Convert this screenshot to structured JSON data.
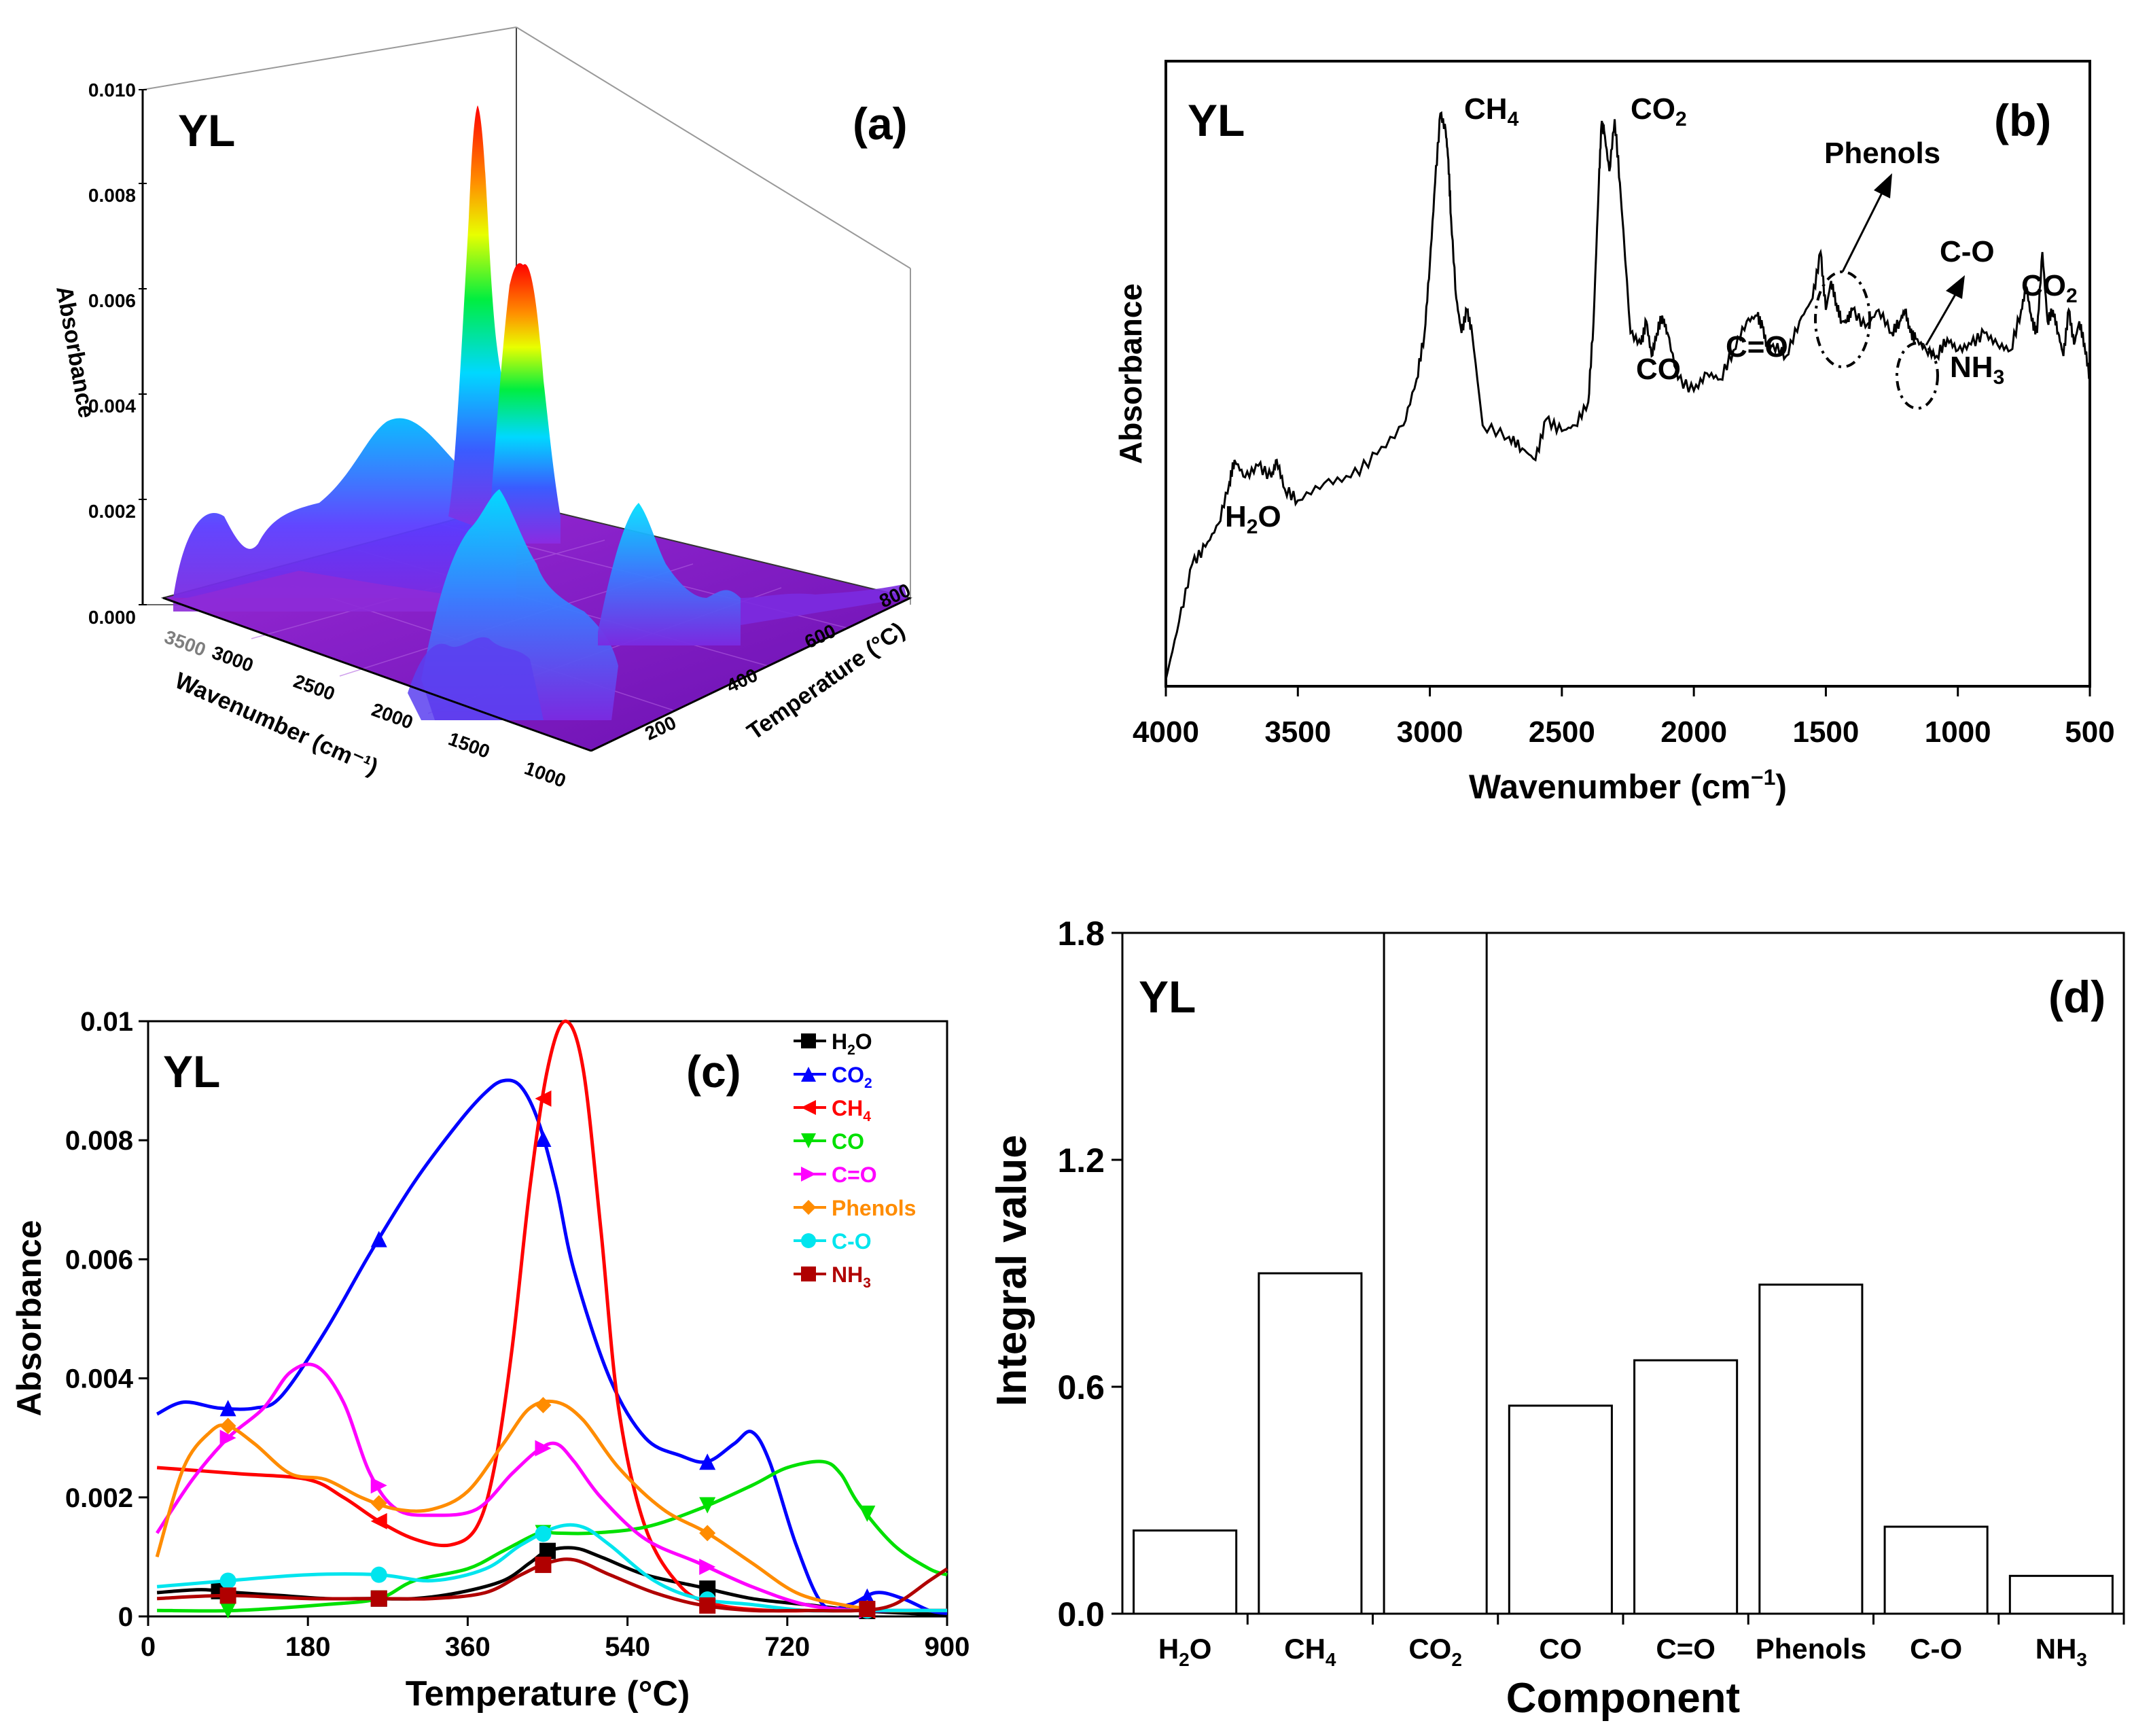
{
  "panel_a": {
    "label": "(a)",
    "sample": "YL",
    "zlabel": "Absorbance",
    "xlabel": "Wavenumber (cm⁻¹)",
    "ylabel": "Temperature (°C)",
    "z_ticks": [
      "0.000",
      "0.002",
      "0.004",
      "0.006",
      "0.008",
      "0.010"
    ],
    "wavenumber_ticks": [
      "3000",
      "2500",
      "2000",
      "1500",
      "1000"
    ],
    "wavenumber_partial_tick": "3500",
    "temperature_ticks": [
      "200",
      "400",
      "600",
      "800"
    ]
  },
  "chart_data": [
    {
      "id": "b",
      "type": "line",
      "label": "(b)",
      "sample": "YL",
      "xlabel_main": "Wavenumber (cm",
      "xlabel_sup": "−1",
      "xlabel_end": ")",
      "ylabel": "Absorbance",
      "xlim": [
        4000,
        500
      ],
      "x_ticks": [
        "4000",
        "3500",
        "3000",
        "2500",
        "2000",
        "1500",
        "1000",
        "500"
      ],
      "x": [
        4000,
        3950,
        3900,
        3850,
        3800,
        3760,
        3740,
        3700,
        3650,
        3600,
        3580,
        3550,
        3500,
        3400,
        3300,
        3200,
        3100,
        3050,
        3020,
        3000,
        2980,
        2960,
        2940,
        2930,
        2920,
        2900,
        2880,
        2860,
        2840,
        2800,
        2700,
        2650,
        2600,
        2560,
        2500,
        2450,
        2400,
        2380,
        2360,
        2350,
        2340,
        2320,
        2300,
        2280,
        2240,
        2200,
        2180,
        2160,
        2140,
        2120,
        2100,
        2060,
        2000,
        1950,
        1900,
        1850,
        1800,
        1760,
        1740,
        1720,
        1700,
        1650,
        1600,
        1550,
        1520,
        1500,
        1480,
        1460,
        1440,
        1420,
        1400,
        1350,
        1300,
        1250,
        1220,
        1200,
        1180,
        1160,
        1120,
        1080,
        1040,
        1000,
        950,
        900,
        850,
        800,
        760,
        740,
        720,
        700,
        680,
        660,
        640,
        620,
        600,
        580,
        560,
        540,
        520,
        500
      ],
      "y": [
        0.0,
        0.1,
        0.2,
        0.23,
        0.27,
        0.34,
        0.38,
        0.35,
        0.37,
        0.35,
        0.38,
        0.33,
        0.31,
        0.34,
        0.35,
        0.39,
        0.44,
        0.52,
        0.6,
        0.72,
        0.86,
        0.98,
        0.95,
        0.9,
        0.8,
        0.66,
        0.6,
        0.64,
        0.6,
        0.44,
        0.42,
        0.4,
        0.38,
        0.45,
        0.43,
        0.44,
        0.48,
        0.62,
        0.86,
        0.96,
        0.95,
        0.88,
        0.97,
        0.86,
        0.6,
        0.58,
        0.62,
        0.56,
        0.6,
        0.63,
        0.6,
        0.52,
        0.5,
        0.53,
        0.52,
        0.57,
        0.62,
        0.63,
        0.61,
        0.57,
        0.58,
        0.56,
        0.62,
        0.66,
        0.74,
        0.64,
        0.69,
        0.65,
        0.62,
        0.62,
        0.64,
        0.61,
        0.64,
        0.6,
        0.62,
        0.64,
        0.6,
        0.59,
        0.57,
        0.56,
        0.59,
        0.57,
        0.58,
        0.6,
        0.58,
        0.57,
        0.64,
        0.68,
        0.62,
        0.6,
        0.74,
        0.62,
        0.64,
        0.6,
        0.56,
        0.64,
        0.58,
        0.62,
        0.58,
        0.52
      ],
      "annotations": [
        {
          "main": "H",
          "sub": "2",
          "end": "O",
          "x": 3650
        },
        {
          "main": "CH",
          "sub": "4",
          "end": "",
          "x": 2780
        },
        {
          "main": "CO",
          "sub": "2",
          "end": "",
          "x": 2190
        },
        {
          "main": "CO",
          "sub": "",
          "end": "",
          "x": 2150
        },
        {
          "main": "C=O",
          "sub": "",
          "end": "",
          "x": 1850
        },
        {
          "main": "Phenols",
          "sub": "",
          "end": "",
          "x": 1280
        },
        {
          "main": "C-O",
          "sub": "",
          "end": "",
          "x": 1050
        },
        {
          "main": "NH",
          "sub": "3",
          "end": "",
          "x": 1030
        },
        {
          "main": "CO",
          "sub": "2",
          "end": "",
          "x": 620
        }
      ]
    },
    {
      "id": "c",
      "type": "line",
      "label": "(c)",
      "sample": "YL",
      "xlabel": "Temperature (°C)",
      "ylabel": "Absorbance",
      "xlim": [
        0,
        900
      ],
      "ylim": [
        0,
        0.01
      ],
      "x_ticks": [
        "0",
        "180",
        "360",
        "540",
        "720",
        "900"
      ],
      "y_ticks": [
        "0",
        "0.002",
        "0.004",
        "0.006",
        "0.008",
        "0.01"
      ],
      "series": [
        {
          "name": "H₂O",
          "color": "#000000",
          "marker": "square",
          "x": [
            10,
            60,
            100,
            150,
            200,
            250,
            300,
            350,
            400,
            430,
            450,
            480,
            510,
            560,
            620,
            680,
            740,
            800,
            860,
            900
          ],
          "y": [
            0.0004,
            0.00045,
            0.0004,
            0.00035,
            0.0003,
            0.0003,
            0.0003,
            0.0004,
            0.0006,
            0.0009,
            0.0011,
            0.00115,
            0.001,
            0.0007,
            0.0005,
            0.0003,
            0.0002,
            0.0001,
            5e-05,
            3e-05
          ],
          "markers_x": [
            80,
            260,
            450,
            630,
            810
          ]
        },
        {
          "name": "CO₂",
          "color": "#0000ff",
          "marker": "triangle-up",
          "x": [
            10,
            40,
            80,
            120,
            150,
            200,
            250,
            300,
            350,
            380,
            400,
            420,
            440,
            460,
            480,
            520,
            560,
            600,
            630,
            660,
            680,
            700,
            730,
            760,
            790,
            820,
            850,
            880,
            900
          ],
          "y": [
            0.0034,
            0.0036,
            0.0035,
            0.0035,
            0.0037,
            0.0048,
            0.0061,
            0.0073,
            0.0083,
            0.0088,
            0.009,
            0.0089,
            0.0083,
            0.0072,
            0.0058,
            0.004,
            0.003,
            0.0027,
            0.0026,
            0.0029,
            0.0031,
            0.0026,
            0.0012,
            0.0002,
            0.0002,
            0.0004,
            0.0003,
            0.0001,
            5e-05
          ],
          "markers_x": [
            90,
            260,
            445,
            630,
            810
          ]
        },
        {
          "name": "CH₄",
          "color": "#ff0000",
          "marker": "triangle-left",
          "x": [
            10,
            100,
            180,
            220,
            260,
            300,
            340,
            370,
            390,
            410,
            430,
            450,
            470,
            490,
            510,
            530,
            560,
            600,
            640,
            700,
            760,
            820,
            880,
            900
          ],
          "y": [
            0.0025,
            0.0024,
            0.0023,
            0.002,
            0.0016,
            0.0013,
            0.0012,
            0.0015,
            0.0025,
            0.0045,
            0.0072,
            0.0092,
            0.01,
            0.0092,
            0.0065,
            0.0035,
            0.0015,
            0.0005,
            0.0002,
            0.0001,
            0.0001,
            0.0001,
            0.0001,
            0.0001
          ],
          "markers_x": [
            260,
            445,
            810
          ]
        },
        {
          "name": "CO",
          "color": "#00e000",
          "marker": "triangle-down",
          "x": [
            10,
            100,
            200,
            260,
            300,
            360,
            400,
            440,
            460,
            500,
            560,
            620,
            680,
            720,
            760,
            780,
            800,
            840,
            880,
            900
          ],
          "y": [
            0.0001,
            0.0001,
            0.0002,
            0.0003,
            0.0006,
            0.0008,
            0.0011,
            0.0014,
            0.0014,
            0.0014,
            0.0015,
            0.0018,
            0.0022,
            0.0025,
            0.0026,
            0.0024,
            0.0019,
            0.0012,
            0.0008,
            0.0007
          ],
          "markers_x": [
            90,
            260,
            445,
            630,
            810
          ]
        },
        {
          "name": "C=O",
          "color": "#ff00ff",
          "marker": "triangle-right",
          "x": [
            10,
            50,
            90,
            130,
            160,
            190,
            220,
            250,
            280,
            320,
            370,
            410,
            440,
            460,
            480,
            510,
            560,
            620,
            680,
            740,
            800,
            860,
            900
          ],
          "y": [
            0.0014,
            0.0023,
            0.003,
            0.0035,
            0.0041,
            0.0042,
            0.0036,
            0.0024,
            0.0018,
            0.0017,
            0.0018,
            0.0024,
            0.0028,
            0.0029,
            0.0026,
            0.002,
            0.0013,
            0.0009,
            0.0005,
            0.0002,
            0.0001,
            0.0001,
            0.0001
          ],
          "markers_x": [
            90,
            260,
            445,
            630,
            810
          ]
        },
        {
          "name": "Phenols",
          "color": "#ff8c00",
          "marker": "diamond",
          "x": [
            10,
            40,
            70,
            90,
            120,
            160,
            200,
            240,
            280,
            320,
            360,
            400,
            430,
            460,
            490,
            530,
            580,
            630,
            680,
            730,
            780,
            830,
            880,
            900
          ],
          "y": [
            0.001,
            0.0025,
            0.0031,
            0.0032,
            0.0029,
            0.0024,
            0.0023,
            0.002,
            0.0018,
            0.0018,
            0.0021,
            0.0029,
            0.0035,
            0.0036,
            0.0033,
            0.0025,
            0.0018,
            0.0014,
            0.0009,
            0.0004,
            0.0002,
            0.0001,
            0.0001,
            0.0001
          ],
          "markers_x": [
            90,
            260,
            445,
            630,
            810
          ]
        },
        {
          "name": "C-O",
          "color": "#00e5ee",
          "marker": "circle",
          "x": [
            10,
            90,
            180,
            260,
            320,
            380,
            420,
            460,
            490,
            520,
            570,
            620,
            680,
            740,
            800,
            860,
            900
          ],
          "y": [
            0.0005,
            0.0006,
            0.0007,
            0.0007,
            0.0006,
            0.0008,
            0.0012,
            0.0015,
            0.0015,
            0.0012,
            0.0006,
            0.0003,
            0.0002,
            0.0001,
            0.0001,
            0.0001,
            0.0001
          ],
          "markers_x": [
            90,
            260,
            445,
            630,
            810
          ]
        },
        {
          "name": "NH₃",
          "color": "#b00000",
          "marker": "square",
          "x": [
            10,
            90,
            180,
            260,
            320,
            380,
            420,
            450,
            480,
            520,
            570,
            620,
            680,
            740,
            800,
            840,
            880,
            900
          ],
          "y": [
            0.0003,
            0.00035,
            0.0003,
            0.0003,
            0.0003,
            0.0004,
            0.0007,
            0.0009,
            0.00095,
            0.0007,
            0.0004,
            0.0002,
            0.0001,
            0.0001,
            0.0001,
            0.0002,
            0.0006,
            0.0008
          ],
          "markers_x": [
            90,
            260,
            445,
            630,
            810
          ]
        }
      ]
    },
    {
      "id": "d",
      "type": "bar",
      "label": "(d)",
      "sample": "YL",
      "xlabel": "Component",
      "ylabel": "Integral value",
      "ylim": [
        0,
        1.8
      ],
      "y_ticks": [
        "0.0",
        "0.6",
        "1.2",
        "1.8"
      ],
      "categories": [
        "H₂O",
        "CH₄",
        "CO₂",
        "CO",
        "C=O",
        "Phenols",
        "C-O",
        "NH₃"
      ],
      "values": [
        0.22,
        0.9,
        1.8,
        0.55,
        0.67,
        0.87,
        0.23,
        0.1
      ]
    }
  ],
  "legend_c": {
    "items": [
      {
        "main": "H",
        "sub": "2",
        "end": "O",
        "color": "#000000"
      },
      {
        "main": "CO",
        "sub": "2",
        "end": "",
        "color": "#0000ff"
      },
      {
        "main": "CH",
        "sub": "4",
        "end": "",
        "color": "#ff0000"
      },
      {
        "main": "CO",
        "sub": "",
        "end": "",
        "color": "#00e000"
      },
      {
        "main": "C=O",
        "sub": "",
        "end": "",
        "color": "#ff00ff"
      },
      {
        "main": "Phenols",
        "sub": "",
        "end": "",
        "color": "#ff8c00"
      },
      {
        "main": "C-O",
        "sub": "",
        "end": "",
        "color": "#00e5ee"
      },
      {
        "main": "NH",
        "sub": "3",
        "end": "",
        "color": "#b00000"
      }
    ]
  },
  "bar_labels_d": [
    {
      "main": "H",
      "sub": "2",
      "end": "O"
    },
    {
      "main": "CH",
      "sub": "4",
      "end": ""
    },
    {
      "main": "CO",
      "sub": "2",
      "end": ""
    },
    {
      "main": "CO",
      "sub": "",
      "end": ""
    },
    {
      "main": "C=O",
      "sub": "",
      "end": ""
    },
    {
      "main": "Phenols",
      "sub": "",
      "end": ""
    },
    {
      "main": "C-O",
      "sub": "",
      "end": ""
    },
    {
      "main": "NH",
      "sub": "3",
      "end": ""
    }
  ]
}
